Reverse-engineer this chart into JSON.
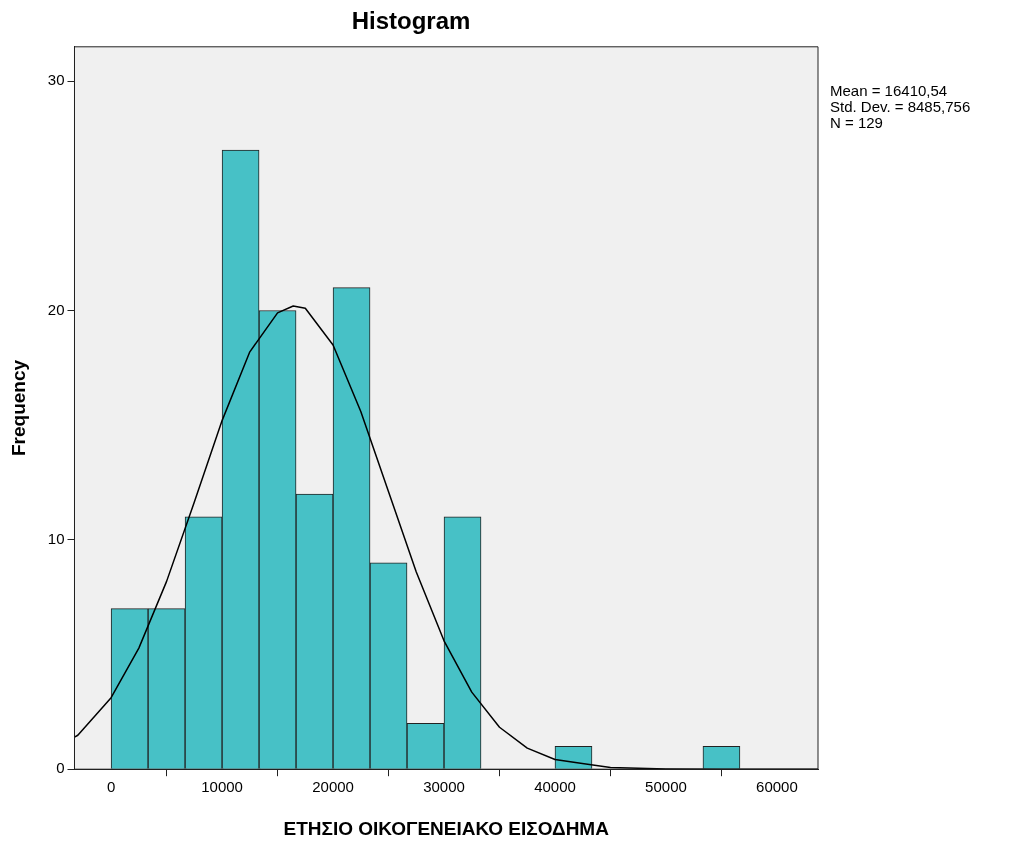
{
  "chart_data": {
    "type": "histogram",
    "title": "Histogram",
    "xlabel": "ΕΤΗΣΙΟ ΟΙΚΟΓΕΝΕΙΑΚΟ ΕΙΣΟΔΗΜΑ",
    "ylabel": "Frequency",
    "bins": [
      0,
      3333.33,
      6666.67,
      10000,
      13333.33,
      16666.67,
      20000,
      23333.33,
      26666.67,
      30000,
      33333.33,
      36666.67,
      40000,
      43333.33,
      46666.67,
      50000,
      53333.33,
      56666.67
    ],
    "values": [
      7,
      7,
      11,
      27,
      20,
      12,
      21,
      9,
      2,
      11,
      0,
      0,
      1,
      0,
      0,
      0,
      1
    ],
    "color": "#47c1c6",
    "series": [
      {
        "type": "line",
        "color": "#000000",
        "x": [
          -3300,
          -3000,
          0,
          2500,
          5000,
          7500,
          10000,
          12500,
          15000,
          16410,
          17500,
          20000,
          22500,
          25000,
          27500,
          30000,
          32500,
          35000,
          37500,
          40000,
          45000,
          50000,
          55000,
          63700
        ],
        "values": [
          1.4,
          1.48,
          3.12,
          5.28,
          8.19,
          11.65,
          15.2,
          18.2,
          19.9,
          20.2,
          20.1,
          18.5,
          15.6,
          12.1,
          8.6,
          5.6,
          3.36,
          1.83,
          0.92,
          0.42,
          0.07,
          0.01,
          0,
          0
        ]
      }
    ],
    "xlim": [
      -3300,
      63700
    ],
    "ylim": [
      0,
      31.5
    ],
    "xticks": [
      0,
      10000,
      20000,
      30000,
      40000,
      50000,
      60000
    ],
    "yticks": [
      0,
      10,
      20,
      30
    ],
    "grid": false,
    "legend": false,
    "marker": "none",
    "line_style": "solid",
    "annotations": [
      "Mean = 16410,54",
      "Std. Dev. = 8485,756",
      "N = 129"
    ]
  }
}
